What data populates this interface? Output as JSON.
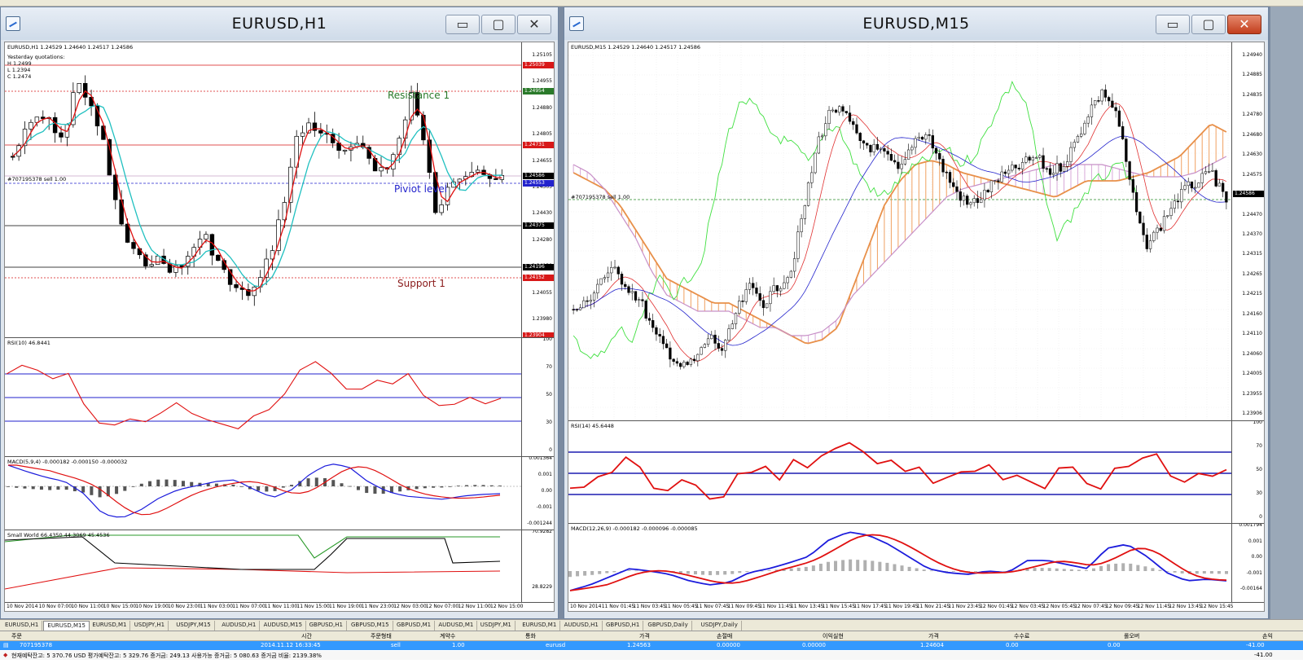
{
  "windows": [
    {
      "title": "EURUSD,H1",
      "price_label": "EURUSD,H1  1.24529 1.24640 1.24517 1.24586",
      "yesterday": [
        "Yesterday quotations:",
        "H 1.2499",
        "L 1.2394",
        "C 1.2474"
      ],
      "order_line": "#707195378 sell 1.00",
      "annotations": {
        "resistance": "Resistance 1",
        "pivot": "Piviot level",
        "support": "Support 1"
      },
      "price_ticks": [
        "1.25105",
        "1.24955",
        "1.24880",
        "1.24805",
        "1.24655",
        "1.24505",
        "1.24430",
        "1.24280",
        "1.24130",
        "1.24055",
        "1.23980"
      ],
      "price_tags": [
        {
          "text": "1.25039",
          "color": "#d81818"
        },
        {
          "text": "1.24954",
          "color": "#2a7a2a"
        },
        {
          "text": "1.24731",
          "color": "#d81818"
        },
        {
          "text": "1.24586",
          "color": "#000000"
        },
        {
          "text": "1.24553",
          "color": "#2222cc"
        },
        {
          "text": "1.24375",
          "color": "#000000"
        },
        {
          "text": "1.24196",
          "color": "#000000"
        },
        {
          "text": "1.24152",
          "color": "#d81818"
        },
        {
          "text": "1.23904",
          "color": "#d81818"
        }
      ],
      "rsi_label": "RSI(10) 46.8441",
      "rsi_ticks": [
        "100",
        "70",
        "50",
        "30",
        "0"
      ],
      "macd_label": "MACD(5,9,4) -0.000182 -0.000150 -0.000032",
      "macd_ticks": [
        "0.001364",
        "0.001",
        "0.00",
        "-0.001",
        "-0.001244"
      ],
      "extra_label": "Small World 66.4350 44.3069 45.4536",
      "extra_ticks": [
        "70.9282",
        "28.8229"
      ],
      "x_ticks": [
        "10 Nov 2014",
        "10 Nov 07:00",
        "10 Nov 11:00",
        "10 Nov 15:00",
        "10 Nov 19:00",
        "10 Nov 23:00",
        "11 Nov 03:00",
        "11 Nov 07:00",
        "11 Nov 11:00",
        "11 Nov 15:00",
        "11 Nov 19:00",
        "11 Nov 23:00",
        "12 Nov 03:00",
        "12 Nov 07:00",
        "12 Nov 11:00",
        "12 Nov 15:00"
      ]
    },
    {
      "title": "EURUSD,M15",
      "price_label": "EURUSD,M15  1.24529 1.24640 1.24517 1.24586",
      "order_line": "#707195378 sell 1.00",
      "price_ticks": [
        "1.24940",
        "1.24885",
        "1.24835",
        "1.24780",
        "1.24680",
        "1.24630",
        "1.24575",
        "1.24525",
        "1.24470",
        "1.24370",
        "1.24315",
        "1.24265",
        "1.24215",
        "1.24160",
        "1.24110",
        "1.24060",
        "1.24005",
        "1.23955",
        "1.23906"
      ],
      "price_tag": "1.24586",
      "rsi_label": "RSI(14) 45.6448",
      "rsi_ticks": [
        "100",
        "70",
        "50",
        "30",
        "0"
      ],
      "macd_label": "MACD(12,26,9) -0.000182 -0.000096 -0.000085",
      "macd_ticks": [
        "0.001794",
        "0.001",
        "0.00",
        "-0.001",
        "-0.00164"
      ],
      "x_ticks": [
        "10 Nov 2014",
        "11 Nov 01:45",
        "11 Nov 03:45",
        "11 Nov 05:45",
        "11 Nov 07:45",
        "11 Nov 09:45",
        "11 Nov 11:45",
        "11 Nov 13:45",
        "11 Nov 15:45",
        "11 Nov 17:45",
        "11 Nov 19:45",
        "11 Nov 21:45",
        "11 Nov 23:45",
        "12 Nov 01:45",
        "12 Nov 03:45",
        "12 Nov 05:45",
        "12 Nov 07:45",
        "12 Nov 09:45",
        "12 Nov 11:45",
        "12 Nov 13:45",
        "12 Nov 15:45"
      ]
    }
  ],
  "window_buttons": {
    "minimize": "▭",
    "maximize": "▢",
    "close": "✕"
  },
  "tabs": [
    "EURUSD,H1",
    "EURUSD,M15",
    "EURUSD,M1",
    "USDJPY,H1",
    "USDJPY,M15",
    "AUDUSD,H1",
    "AUDUSD,M15",
    "GBPUSD,H1",
    "GBPUSD,M15",
    "GBPUSD,M1",
    "AUDUSD,M1",
    "USDJPY,M1",
    "EURUSD,M1",
    "AUDUSD,H1",
    "GBPUSD,H1",
    "GBPUSD,Daily",
    "USDJPY,Daily"
  ],
  "active_tab": 1,
  "terminal": {
    "headers": [
      "주문",
      "시간",
      "주문형태",
      "계약수",
      "통화",
      "가격",
      "손절매",
      "이익실현",
      "가격",
      "수수료",
      "롤오버",
      "손익"
    ],
    "row": [
      "707195378",
      "2014.11.12 16:33:45",
      "sell",
      "1.00",
      "eurusd",
      "1.24563",
      "0.00000",
      "0.00000",
      "1.24604",
      "0.00",
      "0.00",
      "-41.00"
    ],
    "balance": "현재예탁잔고: 5 370.76 USD  평가예탁잔고: 5 329.76  증거금: 249.13  사용가능 증거금: 5 080.63  증거금 비율: 2139.38%",
    "balance_total": "-41.00"
  },
  "colors": {
    "bull": "#ffffff",
    "bear": "#000000",
    "ma_fast": "#e01010",
    "ma_slow": "#20c0c0",
    "rsi": "#e01010",
    "macd_main": "#1c1cdc",
    "macd_signal": "#e01010",
    "kumo_up": "#d8a8d8",
    "kumo_down": "#f0a060"
  }
}
